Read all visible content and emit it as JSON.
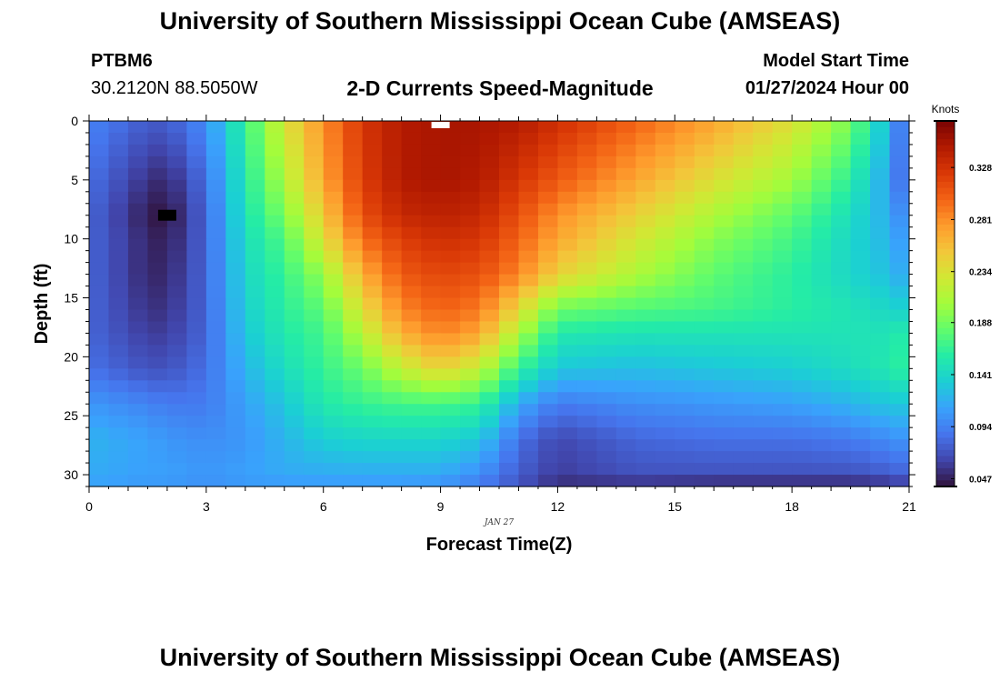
{
  "header": {
    "title": "University of Southern Mississippi Ocean Cube (AMSEAS)",
    "station_id": "PTBM6",
    "station_coords": "30.2120N  88.5050W",
    "subtitle": "2-D Currents Speed-Magnitude",
    "model_start_label": "Model Start Time",
    "model_start_date": "01/27/2024 Hour 00"
  },
  "footer": {
    "title": "University of Southern Mississippi Ocean Cube (AMSEAS)"
  },
  "colors": {
    "palette": [
      "#30123b",
      "#4145ab",
      "#4675ed",
      "#39a2fc",
      "#1bcfd4",
      "#24eca6",
      "#61fc6c",
      "#a4fc3b",
      "#d1e834",
      "#f3c63a",
      "#fe9b2d",
      "#f36315",
      "#d93806",
      "#b11901",
      "#7a0403"
    ]
  },
  "chart_data": {
    "type": "heatmap",
    "title": "2-D Currents Speed-Magnitude",
    "xlabel": "Forecast Time(Z)",
    "ylabel": "Depth (ft)",
    "date_label": "JAN 27",
    "x_ticks": [
      "0",
      "3",
      "6",
      "9",
      "12",
      "15",
      "18",
      "21"
    ],
    "x_tick_values": [
      0,
      3,
      6,
      9,
      12,
      15,
      18,
      21
    ],
    "y_ticks": [
      "0",
      "5",
      "10",
      "15",
      "20",
      "25",
      "30"
    ],
    "y_tick_values": [
      0,
      5,
      10,
      15,
      20,
      25,
      30
    ],
    "xlim": [
      0,
      21
    ],
    "ylim": [
      31,
      0
    ],
    "colorbar": {
      "units": "Knots",
      "tick_labels": [
        "0.328",
        "0.281",
        "0.234",
        "0.188",
        "0.141",
        "0.094",
        "0.047"
      ],
      "tick_values": [
        0.328,
        0.281,
        0.234,
        0.188,
        0.141,
        0.094,
        0.047
      ],
      "range": [
        0.04,
        0.37
      ]
    },
    "time_nodes": [
      0,
      1.5,
      2,
      3,
      4,
      5,
      6,
      7,
      8,
      9,
      10,
      11,
      12,
      14,
      16,
      18,
      19.5,
      20.5,
      21
    ],
    "depth_nodes": [
      0,
      5,
      8,
      10,
      13,
      16,
      18,
      21,
      24,
      27,
      30,
      31
    ],
    "values": [
      [
        0.095,
        0.075,
        0.075,
        0.1,
        0.165,
        0.23,
        0.28,
        0.325,
        0.345,
        0.35,
        0.35,
        0.345,
        0.33,
        0.3,
        0.27,
        0.235,
        0.19,
        0.12,
        0.07
      ],
      [
        0.085,
        0.055,
        0.05,
        0.085,
        0.155,
        0.21,
        0.27,
        0.32,
        0.345,
        0.35,
        0.345,
        0.325,
        0.305,
        0.27,
        0.235,
        0.205,
        0.16,
        0.11,
        0.07
      ],
      [
        0.08,
        0.045,
        0.04,
        0.08,
        0.15,
        0.19,
        0.25,
        0.31,
        0.335,
        0.34,
        0.335,
        0.31,
        0.28,
        0.245,
        0.21,
        0.18,
        0.145,
        0.115,
        0.09
      ],
      [
        0.08,
        0.05,
        0.045,
        0.08,
        0.145,
        0.175,
        0.235,
        0.295,
        0.32,
        0.33,
        0.325,
        0.3,
        0.27,
        0.23,
        0.195,
        0.17,
        0.14,
        0.12,
        0.1
      ],
      [
        0.08,
        0.05,
        0.05,
        0.08,
        0.14,
        0.165,
        0.2,
        0.265,
        0.305,
        0.315,
        0.31,
        0.285,
        0.245,
        0.21,
        0.18,
        0.16,
        0.14,
        0.125,
        0.11
      ],
      [
        0.08,
        0.055,
        0.055,
        0.08,
        0.135,
        0.16,
        0.18,
        0.235,
        0.285,
        0.3,
        0.29,
        0.24,
        0.185,
        0.175,
        0.17,
        0.16,
        0.15,
        0.14,
        0.135
      ],
      [
        0.08,
        0.06,
        0.06,
        0.08,
        0.13,
        0.155,
        0.17,
        0.215,
        0.265,
        0.285,
        0.27,
        0.21,
        0.155,
        0.15,
        0.15,
        0.15,
        0.15,
        0.15,
        0.16
      ],
      [
        0.085,
        0.07,
        0.07,
        0.085,
        0.12,
        0.145,
        0.165,
        0.185,
        0.22,
        0.245,
        0.22,
        0.165,
        0.13,
        0.125,
        0.13,
        0.135,
        0.145,
        0.155,
        0.165
      ],
      [
        0.105,
        0.095,
        0.09,
        0.09,
        0.11,
        0.13,
        0.155,
        0.165,
        0.17,
        0.17,
        0.165,
        0.115,
        0.09,
        0.1,
        0.105,
        0.11,
        0.12,
        0.13,
        0.13
      ],
      [
        0.12,
        0.11,
        0.105,
        0.1,
        0.105,
        0.12,
        0.135,
        0.14,
        0.14,
        0.14,
        0.13,
        0.085,
        0.065,
        0.08,
        0.085,
        0.085,
        0.09,
        0.1,
        0.105
      ],
      [
        0.115,
        0.11,
        0.11,
        0.105,
        0.11,
        0.115,
        0.115,
        0.115,
        0.115,
        0.115,
        0.1,
        0.075,
        0.06,
        0.07,
        0.07,
        0.07,
        0.07,
        0.075,
        0.08
      ],
      [
        0.11,
        0.105,
        0.105,
        0.1,
        0.105,
        0.105,
        0.105,
        0.105,
        0.105,
        0.1,
        0.09,
        0.07,
        0.05,
        0.05,
        0.045,
        0.045,
        0.045,
        0.05,
        0.06
      ]
    ],
    "markers": [
      {
        "name": "minimum",
        "time": 2,
        "depth": 8,
        "color": "#000000"
      },
      {
        "name": "maximum",
        "time": 9,
        "depth": 0,
        "color": "#ffffff"
      }
    ]
  }
}
